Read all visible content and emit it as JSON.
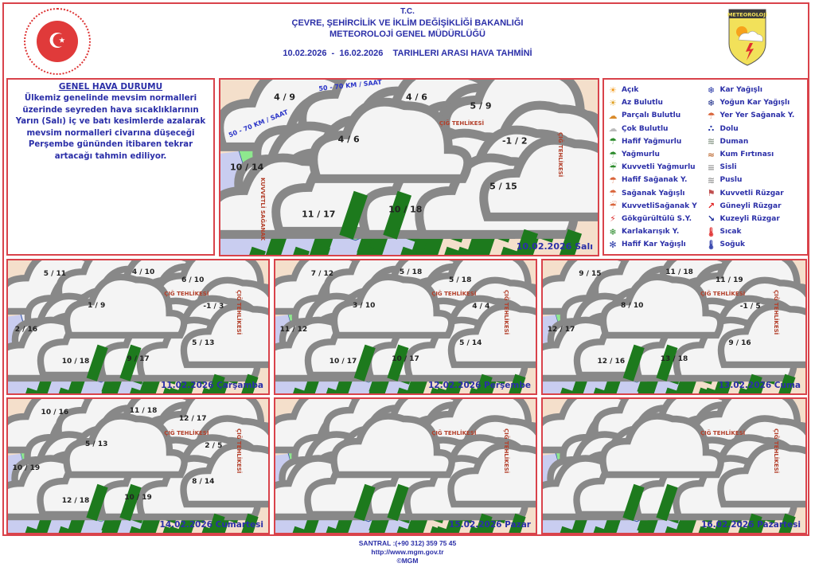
{
  "header": {
    "tc": "T.C.",
    "ministry": "ÇEVRE, ŞEHİRCİLİK VE İKLİM DEĞİŞİKLİĞİ BAKANLIĞI",
    "agency": "METEOROLOJİ GENEL MÜDÜRLÜĞÜ",
    "date_range": "10.02.2026  -  16.02.2026    TARIHLERI ARASI HAVA TAHMİNİ",
    "logo_right_text": "METEOROLOJİ"
  },
  "general": {
    "title": "GENEL HAVA DURUMU",
    "text": "Ülkemiz genelinde mevsim normalleri üzerinde seyreden hava sıcaklıklarının Yarın (Salı) iç ve batı kesimlerde azalarak mevsim normalleri civarına düşeceği Perşembe gününden itibaren tekrar artacağı tahmin ediliyor."
  },
  "legend": {
    "left": [
      {
        "label": "Açık",
        "icon": "sun-icon"
      },
      {
        "label": "Az Bulutlu",
        "icon": "sun-small-cloud-icon"
      },
      {
        "label": "Parçalı Bulutlu",
        "icon": "sun-cloud-icon"
      },
      {
        "label": "Çok Bulutlu",
        "icon": "cloud-icon"
      },
      {
        "label": "Hafif Yağmurlu",
        "icon": "light-rain-icon"
      },
      {
        "label": "Yağmurlu",
        "icon": "rain-icon"
      },
      {
        "label": "Kuvvetli Yağmurlu",
        "icon": "heavy-rain-icon"
      },
      {
        "label": "Hafif Sağanak Y.",
        "icon": "light-shower-icon"
      },
      {
        "label": "Sağanak Yağışlı",
        "icon": "shower-icon"
      },
      {
        "label": "KuvvetliSağanak Y",
        "icon": "heavy-shower-icon"
      },
      {
        "label": "Gökgürültülü S.Y.",
        "icon": "thunderstorm-icon"
      },
      {
        "label": "Karlakarışık Y.",
        "icon": "sleet-icon"
      },
      {
        "label": "Hafif Kar Yağışlı",
        "icon": "light-snow-icon"
      }
    ],
    "right": [
      {
        "label": "Kar Yağışlı",
        "icon": "snow-icon"
      },
      {
        "label": "Yoğun Kar Yağışlı",
        "icon": "heavy-snow-icon"
      },
      {
        "label": "Yer Yer Sağanak Y.",
        "icon": "scattered-shower-icon"
      },
      {
        "label": "Dolu",
        "icon": "hail-icon"
      },
      {
        "label": "Duman",
        "icon": "smoke-icon"
      },
      {
        "label": "Kum Fırtınası",
        "icon": "sandstorm-icon"
      },
      {
        "label": "Sisli",
        "icon": "fog-icon"
      },
      {
        "label": "Puslu",
        "icon": "haze-icon"
      },
      {
        "label": "Kuvvetli Rüzgar",
        "icon": "strong-wind-icon"
      },
      {
        "label": "Güneyli Rüzgar",
        "icon": "south-wind-arrow-icon"
      },
      {
        "label": "Kuzeyli Rüzgar",
        "icon": "north-wind-arrow-icon"
      },
      {
        "label": "Sıcak",
        "icon": "hot-thermometer-icon"
      },
      {
        "label": "Soğuk",
        "icon": "cold-thermometer-icon"
      }
    ]
  },
  "maps": [
    {
      "date": "10.02.2026 Salı",
      "temps": [
        "4 / 9",
        "4 / 6",
        "5 / 9",
        "4 / 6",
        "-1 / 2",
        "10 / 14",
        "5 / 15",
        "11 / 17",
        "10 / 18"
      ],
      "wind_labels": [
        "50 - 70 KM / SAAT",
        "50 - 70 KM / SAAT"
      ],
      "warnings": [
        "ÇIĞ TEHLİKESİ",
        "ÇIĞ TEHLİKESİ",
        "KUVVETLİ SAĞANAK"
      ]
    },
    {
      "date": "11.02.2026 Çarşamba",
      "temps": [
        "5 / 11",
        "4 / 10",
        "6 / 10",
        "1 / 9",
        "-1 / 3",
        "2 / 16",
        "5 / 13",
        "10 / 18",
        "9 / 17"
      ],
      "warnings": [
        "ÇIĞ TEHLİKESİ",
        "ÇIĞ TEHLİKESİ"
      ]
    },
    {
      "date": "12.02.2026 Perşembe",
      "temps": [
        "7 / 12",
        "5 / 18",
        "5 / 18",
        "3 / 10",
        "4 / 4",
        "11 / 12",
        "5 / 14",
        "10 / 17",
        "10 / 17"
      ],
      "warnings": [
        "ÇIĞ TEHLİKESİ",
        "ÇIĞ TEHLİKESİ"
      ]
    },
    {
      "date": "13.02.2026 Cuma",
      "temps": [
        "9 / 15",
        "11 / 18",
        "11 / 19",
        "8 / 10",
        "-1 / 5",
        "12 / 17",
        "9 / 16",
        "12 / 16",
        "13 / 18"
      ],
      "warnings": [
        "ÇIĞ TEHLİKESİ",
        "ÇIĞ TEHLİKESİ"
      ]
    },
    {
      "date": "14.02.2026 Cumartesi",
      "temps": [
        "10 / 16",
        "11 / 18",
        "12 / 17",
        "5 / 13",
        "2 / 5",
        "10 / 19",
        "8 / 14",
        "12 / 18",
        "10 / 19"
      ],
      "warnings": [
        "ÇIĞ TEHLİKESİ",
        "ÇIĞ TEHLİKESİ"
      ]
    },
    {
      "date": "15.02.2026 Pazar",
      "warnings": [
        "ÇIĞ TEHLİKESİ",
        "ÇIĞ TEHLİKESİ"
      ]
    },
    {
      "date": "16.02.2026 Pazartesi",
      "warnings": [
        "ÇIĞ TEHLİKESİ",
        "ÇIĞ TEHLİKESİ"
      ]
    }
  ],
  "footer": {
    "phone": "SANTRAL :(+90 312) 359 75 45",
    "url": "http://www.mgm.gov.tr",
    "copyright": "©MGM"
  },
  "colors": {
    "border": "#d9434b",
    "text": "#2b2fa8",
    "rain_area": "#8ee88e",
    "heavy_area": "#22dd22",
    "sea": "#c9cdf0",
    "neighbors": "#f4dfcb"
  }
}
